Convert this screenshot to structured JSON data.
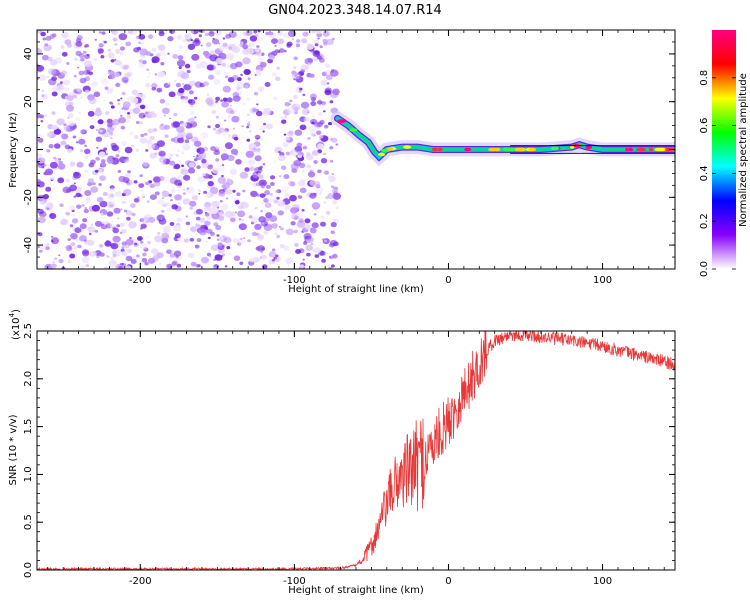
{
  "figure": {
    "title": "GN04.2023.348.14.07.R14"
  },
  "chart_data": [
    {
      "type": "heatmap",
      "title": "GN04.2023.348.14.07.R14",
      "xlabel": "Height of straight line (km)",
      "ylabel": "Frequency (Hz)",
      "xlim": [
        -267,
        147
      ],
      "ylim": [
        -50,
        50
      ],
      "xticks": [
        -200,
        -100,
        0,
        100
      ],
      "yticks": [
        -40,
        -20,
        0,
        20,
        40
      ],
      "noise_region_x": [
        -267,
        -72
      ],
      "signal_track": {
        "x": [
          -72,
          -65,
          -58,
          -52,
          -48,
          -45,
          -40,
          -30,
          -20,
          -10,
          0,
          20,
          40,
          60,
          80,
          85,
          90,
          100,
          120,
          147
        ],
        "frequency": [
          13,
          10,
          6,
          3,
          -1,
          -3,
          0,
          1,
          1,
          0,
          0,
          0,
          0,
          0,
          1,
          2,
          1,
          0,
          0,
          0
        ]
      },
      "colorbar": {
        "label": "Normalized spectral amplitude",
        "range": [
          0,
          1
        ],
        "ticks": [
          "0.0",
          "0.2",
          "0.4",
          "0.6",
          "0.8"
        ],
        "colors": [
          "#ffffff",
          "#8800ff",
          "#0000ff",
          "#00ffff",
          "#00ff00",
          "#ffff00",
          "#ff0000",
          "#ff0080"
        ]
      },
      "grid": false
    },
    {
      "type": "line",
      "xlabel": "Height of straight line (km)",
      "ylabel": "SNR (10 * v/v)",
      "yscale_label": "(x10",
      "yscale_exp": "4",
      "xlim": [
        -267,
        147
      ],
      "ylim": [
        0,
        2.5
      ],
      "xticks": [
        -200,
        -100,
        0,
        100
      ],
      "yticks": [
        "0.0",
        "0.5",
        "1.0",
        "1.5",
        "2.0",
        "2.5"
      ],
      "line_color": "#e8393a",
      "series": [
        {
          "x": [
            -267,
            -200,
            -100,
            -70,
            -60,
            -55,
            -50,
            -45,
            -40,
            -35,
            -30,
            -25,
            -20,
            -15,
            -10,
            -5,
            0,
            5,
            10,
            15,
            20,
            25,
            30,
            40,
            50,
            60,
            70,
            80,
            90,
            100,
            110,
            120,
            130,
            140,
            147
          ],
          "values": [
            0.01,
            0.01,
            0.01,
            0.02,
            0.05,
            0.12,
            0.25,
            0.45,
            0.7,
            0.9,
            1.0,
            1.05,
            1.1,
            1.2,
            1.3,
            1.45,
            1.55,
            1.7,
            1.85,
            2.0,
            2.15,
            2.3,
            2.4,
            2.46,
            2.46,
            2.44,
            2.42,
            2.4,
            2.37,
            2.34,
            2.3,
            2.26,
            2.22,
            2.18,
            2.15
          ]
        }
      ],
      "grid": false
    }
  ]
}
